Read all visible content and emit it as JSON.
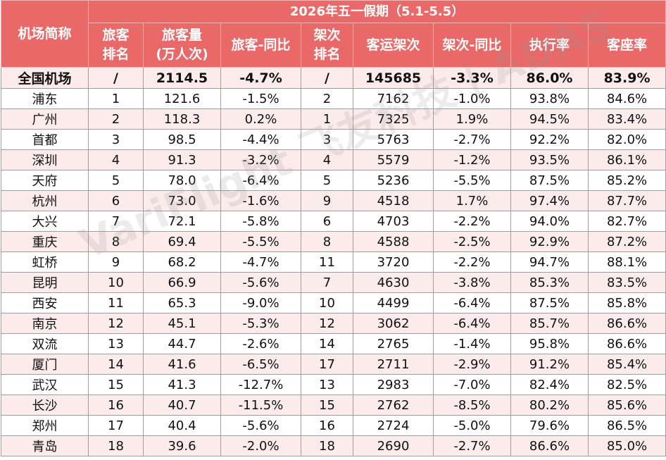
{
  "table": {
    "corner_header": "机场简称",
    "caption": "2026年五一假期（5.1-5.5）",
    "columns": [
      [
        "旅客",
        "排名"
      ],
      [
        "旅客量",
        "(万人次)"
      ],
      [
        "旅客-同比"
      ],
      [
        "架次",
        "排名"
      ],
      [
        "客运架次"
      ],
      [
        "架次-同比"
      ],
      [
        "执行率"
      ],
      [
        "客座率"
      ]
    ],
    "rows": [
      [
        "全国机场",
        "/",
        "2114.5",
        "-4.7%",
        "/",
        "145685",
        "-3.3%",
        "86.0%",
        "83.9%"
      ],
      [
        "浦东",
        "1",
        "121.6",
        "-1.5%",
        "2",
        "7162",
        "-1.0%",
        "93.8%",
        "84.6%"
      ],
      [
        "广州",
        "2",
        "118.3",
        "0.2%",
        "1",
        "7325",
        "1.9%",
        "94.5%",
        "83.4%"
      ],
      [
        "首都",
        "3",
        "98.5",
        "-4.4%",
        "3",
        "5763",
        "-2.7%",
        "92.2%",
        "82.0%"
      ],
      [
        "深圳",
        "4",
        "91.3",
        "-3.2%",
        "4",
        "5579",
        "-1.2%",
        "93.5%",
        "86.1%"
      ],
      [
        "天府",
        "5",
        "78.0",
        "-6.4%",
        "5",
        "5236",
        "-5.5%",
        "87.5%",
        "85.2%"
      ],
      [
        "杭州",
        "6",
        "73.0",
        "-1.6%",
        "9",
        "4518",
        "1.7%",
        "97.4%",
        "87.7%"
      ],
      [
        "大兴",
        "7",
        "72.1",
        "-5.8%",
        "6",
        "4703",
        "-2.2%",
        "94.0%",
        "82.7%"
      ],
      [
        "重庆",
        "8",
        "69.4",
        "-5.5%",
        "8",
        "4588",
        "-2.5%",
        "92.9%",
        "87.2%"
      ],
      [
        "虹桥",
        "9",
        "68.2",
        "-4.7%",
        "11",
        "3720",
        "-2.2%",
        "94.7%",
        "88.1%"
      ],
      [
        "昆明",
        "10",
        "66.9",
        "-5.6%",
        "7",
        "4630",
        "-3.8%",
        "85.3%",
        "83.5%"
      ],
      [
        "西安",
        "11",
        "65.3",
        "-9.0%",
        "10",
        "4499",
        "-6.4%",
        "87.5%",
        "85.8%"
      ],
      [
        "南京",
        "12",
        "45.1",
        "-5.3%",
        "12",
        "3062",
        "-6.4%",
        "85.7%",
        "86.6%"
      ],
      [
        "双流",
        "13",
        "44.7",
        "-2.6%",
        "14",
        "2765",
        "-1.4%",
        "95.8%",
        "86.6%"
      ],
      [
        "厦门",
        "14",
        "41.6",
        "-6.5%",
        "17",
        "2711",
        "-2.9%",
        "91.2%",
        "85.4%"
      ],
      [
        "武汉",
        "15",
        "41.3",
        "-12.7%",
        "13",
        "2983",
        "-7.0%",
        "82.4%",
        "82.5%"
      ],
      [
        "长沙",
        "16",
        "40.7",
        "-11.5%",
        "15",
        "2762",
        "-8.5%",
        "80.2%",
        "85.6%"
      ],
      [
        "郑州",
        "17",
        "40.4",
        "-5.6%",
        "16",
        "2724",
        "-5.0%",
        "79.6%",
        "86.5%"
      ],
      [
        "青岛",
        "18",
        "39.6",
        "-2.0%",
        "18",
        "2690",
        "-2.7%",
        "86.6%",
        "85.0%"
      ]
    ]
  },
  "watermark": "VariFlight 飞友科技 | ADAS",
  "colors": {
    "header_bg": "#e96868",
    "header_text": "#ffffff",
    "row_stripe": "#fcebeb",
    "grid_line": "#9e9e9e"
  }
}
